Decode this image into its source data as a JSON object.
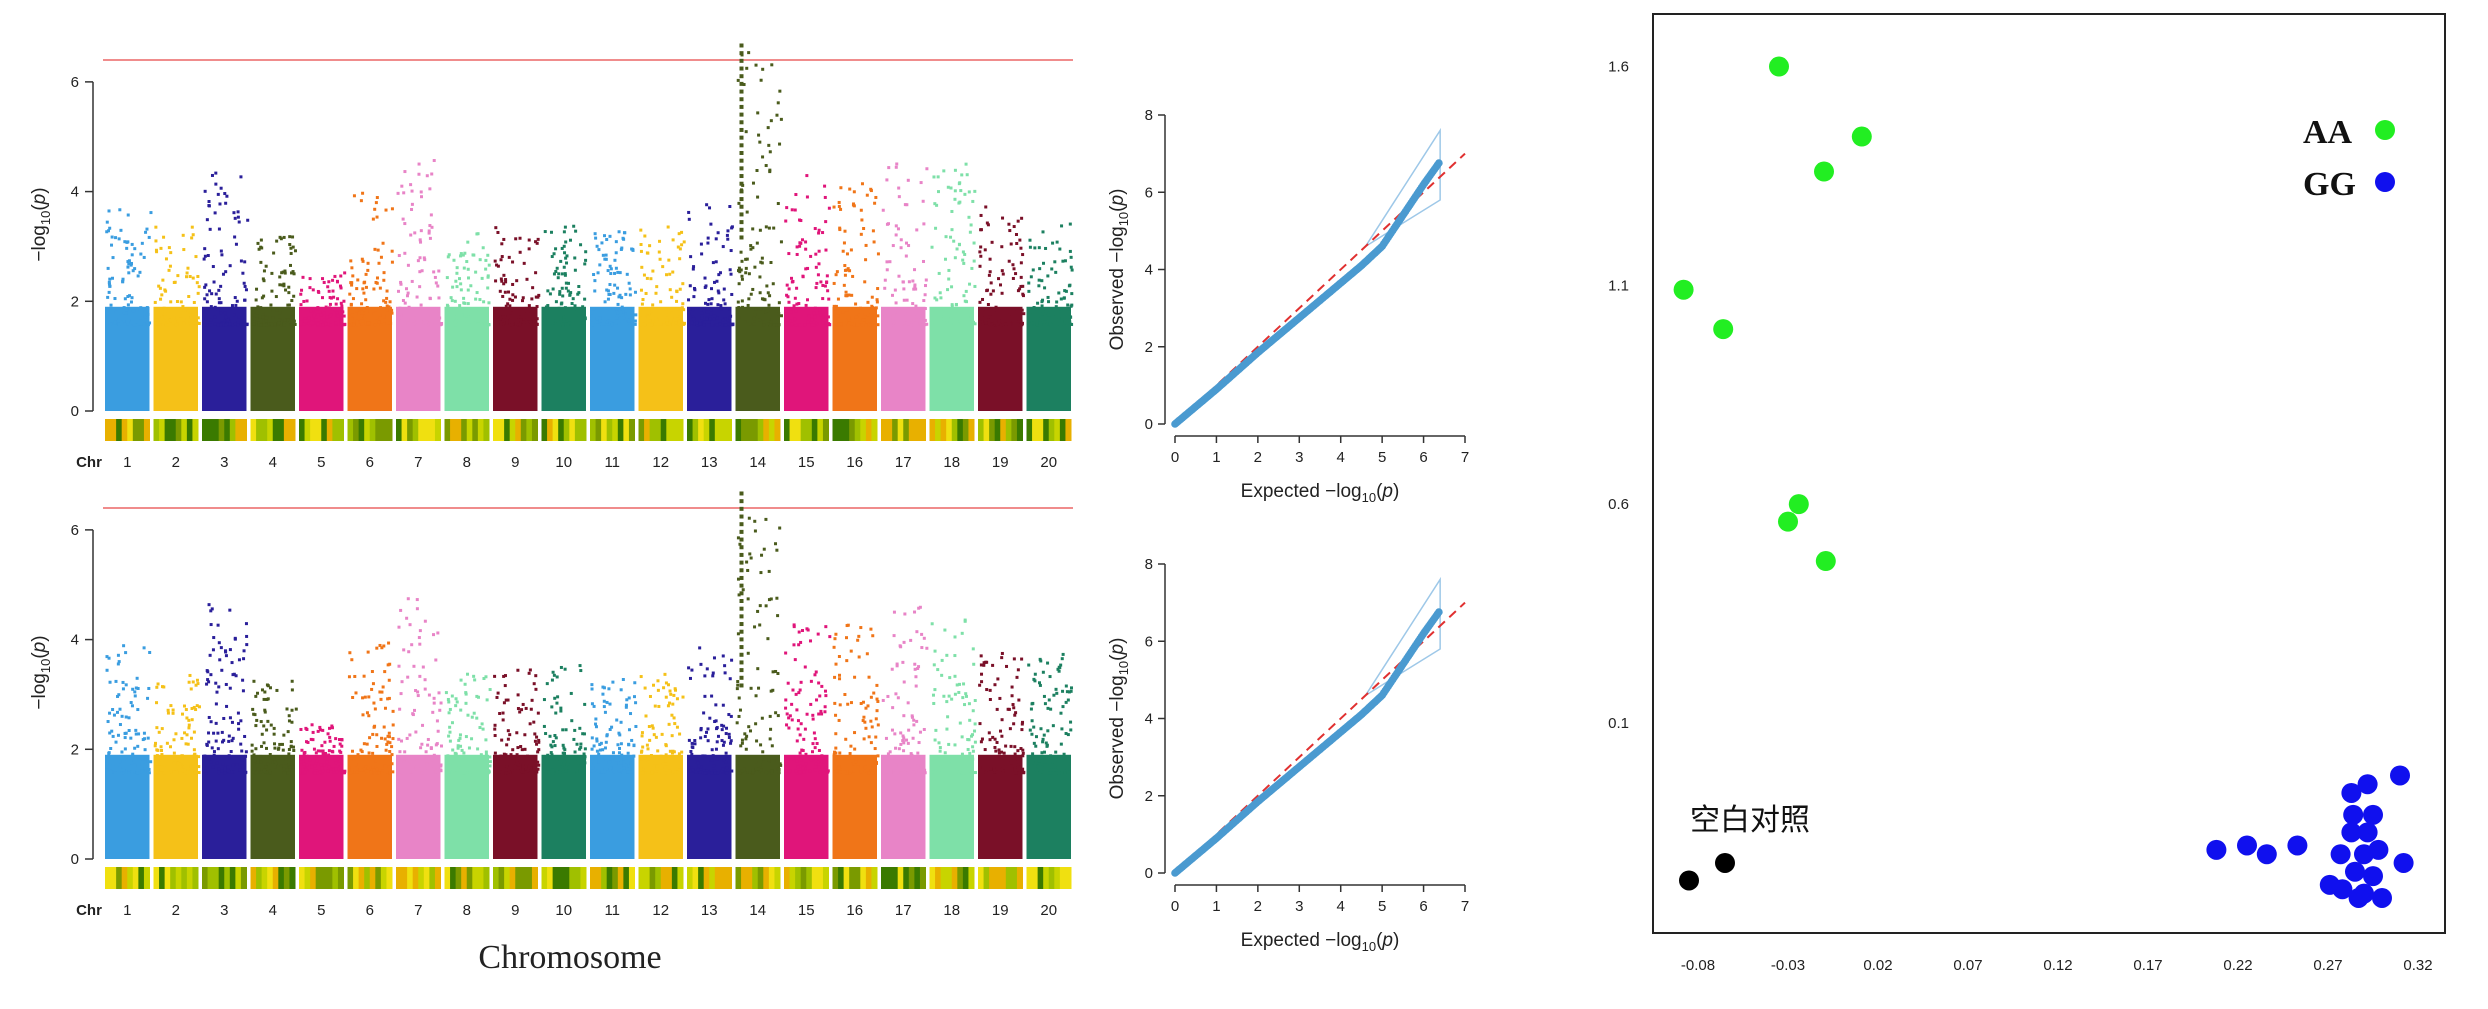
{
  "colors": {
    "chromosome_palette": [
      "#3a9de0",
      "#f5c118",
      "#2a1f9a",
      "#4a5b1c",
      "#e0157a",
      "#f07518",
      "#e884c7",
      "#7ee0a8",
      "#7a1028",
      "#1c8060"
    ],
    "threshold_line": "#f08c8c",
    "qq_points": "#4a9ad0",
    "qq_diagonal": "#e03030",
    "group_aa": "#22ee22",
    "group_gg": "#1010ee",
    "group_blank": "#000000"
  },
  "manhattan_xlabel": "Chromosome",
  "chart_data": [
    {
      "type": "scatter",
      "kind": "manhattan",
      "panel": "top",
      "ylabel": "−log10(p)",
      "x_prefix": "Chr",
      "x_ticks": [
        "1",
        "2",
        "3",
        "4",
        "5",
        "6",
        "7",
        "8",
        "9",
        "10",
        "11",
        "12",
        "13",
        "14",
        "15",
        "16",
        "17",
        "18",
        "19",
        "20"
      ],
      "y_ticks": [
        "0",
        "2",
        "4",
        "6"
      ],
      "ylim": [
        0,
        6.8
      ],
      "threshold": 6.4,
      "chromosome_peaks": [
        3.8,
        3.4,
        4.5,
        3.3,
        2.6,
        4.0,
        4.7,
        3.3,
        3.4,
        3.4,
        3.3,
        3.4,
        3.8,
        6.8,
        4.4,
        4.2,
        4.6,
        4.6,
        3.8,
        3.5
      ],
      "top_hit_chromosome": "14"
    },
    {
      "type": "scatter",
      "kind": "manhattan",
      "panel": "bottom",
      "ylabel": "−log10(p)",
      "x_prefix": "Chr",
      "x_ticks": [
        "1",
        "2",
        "3",
        "4",
        "5",
        "6",
        "7",
        "8",
        "9",
        "10",
        "11",
        "12",
        "13",
        "14",
        "15",
        "16",
        "17",
        "18",
        "19",
        "20"
      ],
      "y_ticks": [
        "0",
        "2",
        "4",
        "6"
      ],
      "ylim": [
        0,
        6.8
      ],
      "threshold": 6.4,
      "chromosome_peaks": [
        4.0,
        3.4,
        4.7,
        3.3,
        2.5,
        4.0,
        4.8,
        3.4,
        3.6,
        3.6,
        3.3,
        3.5,
        3.9,
        6.7,
        4.3,
        4.5,
        4.7,
        4.5,
        3.8,
        3.8
      ],
      "top_hit_chromosome": "14"
    },
    {
      "type": "scatter",
      "kind": "qq",
      "panel": "top",
      "xlabel": "Expected  −log10(p)",
      "ylabel": "Observed  −log10(p)",
      "x_ticks": [
        "0",
        "1",
        "2",
        "3",
        "4",
        "5",
        "6",
        "7"
      ],
      "y_ticks": [
        "0",
        "2",
        "4",
        "6",
        "8"
      ],
      "xlim": [
        0,
        7
      ],
      "ylim": [
        0,
        8
      ],
      "curve": [
        [
          0,
          0
        ],
        [
          1,
          0.9
        ],
        [
          2,
          1.85
        ],
        [
          3,
          2.75
        ],
        [
          4,
          3.65
        ],
        [
          4.5,
          4.1
        ],
        [
          5,
          4.6
        ],
        [
          5.5,
          5.4
        ],
        [
          6,
          6.2
        ],
        [
          6.4,
          6.8
        ]
      ],
      "max_point": [
        6.4,
        7.6
      ]
    },
    {
      "type": "scatter",
      "kind": "qq",
      "panel": "bottom",
      "xlabel": "Expected  −log10(p)",
      "ylabel": "Observed  −log10(p)",
      "x_ticks": [
        "0",
        "1",
        "2",
        "3",
        "4",
        "5",
        "6",
        "7"
      ],
      "y_ticks": [
        "0",
        "2",
        "4",
        "6",
        "8"
      ],
      "xlim": [
        0,
        7
      ],
      "ylim": [
        0,
        8
      ],
      "curve": [
        [
          0,
          0
        ],
        [
          1,
          0.9
        ],
        [
          2,
          1.85
        ],
        [
          3,
          2.75
        ],
        [
          4,
          3.65
        ],
        [
          4.5,
          4.1
        ],
        [
          5,
          4.6
        ],
        [
          5.5,
          5.4
        ],
        [
          6,
          6.2
        ],
        [
          6.4,
          6.8
        ]
      ],
      "max_point": [
        6.4,
        7.6
      ]
    },
    {
      "type": "scatter",
      "kind": "genotype_clusters",
      "x_ticks": [
        "-0.08",
        "-0.03",
        "0.02",
        "0.07",
        "0.12",
        "0.17",
        "0.22",
        "0.27",
        "0.32"
      ],
      "y_ticks": [
        "0.1",
        "0.6",
        "1.1",
        "1.6"
      ],
      "xlim": [
        -0.105,
        0.335
      ],
      "ylim": [
        -0.38,
        1.72
      ],
      "legend_position": "top-right",
      "series": [
        {
          "name": "AA",
          "color": "#22ee22",
          "points": [
            [
              -0.035,
              1.6
            ],
            [
              0.011,
              1.44
            ],
            [
              -0.01,
              1.36
            ],
            [
              -0.088,
              1.09
            ],
            [
              -0.066,
              1.0
            ],
            [
              -0.024,
              0.6
            ],
            [
              -0.03,
              0.56
            ],
            [
              -0.009,
              0.47
            ]
          ]
        },
        {
          "name": "GG",
          "color": "#1010ee",
          "points": [
            [
              0.208,
              -0.19
            ],
            [
              0.225,
              -0.18
            ],
            [
              0.236,
              -0.2
            ],
            [
              0.253,
              -0.18
            ],
            [
              0.283,
              -0.06
            ],
            [
              0.292,
              -0.04
            ],
            [
              0.31,
              -0.02
            ],
            [
              0.284,
              -0.11
            ],
            [
              0.295,
              -0.11
            ],
            [
              0.283,
              -0.15
            ],
            [
              0.292,
              -0.15
            ],
            [
              0.277,
              -0.2
            ],
            [
              0.29,
              -0.2
            ],
            [
              0.298,
              -0.19
            ],
            [
              0.285,
              -0.24
            ],
            [
              0.295,
              -0.25
            ],
            [
              0.312,
              -0.22
            ],
            [
              0.271,
              -0.27
            ],
            [
              0.278,
              -0.28
            ],
            [
              0.29,
              -0.29
            ],
            [
              0.3,
              -0.3
            ],
            [
              0.287,
              -0.3
            ]
          ]
        },
        {
          "name": "空白对照",
          "color": "#000000",
          "points": [
            [
              -0.085,
              -0.26
            ],
            [
              -0.065,
              -0.22
            ]
          ]
        }
      ]
    }
  ]
}
